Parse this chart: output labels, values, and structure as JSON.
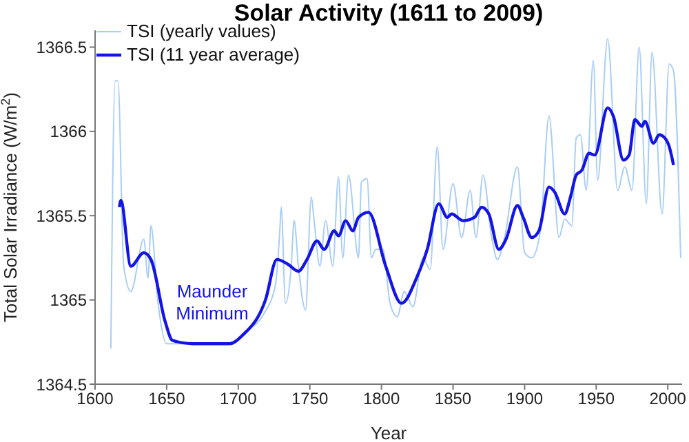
{
  "chart_data": {
    "type": "line",
    "title": "Solar Activity (1611 to 2009)",
    "xlabel": "Year",
    "ylabel": "Total Solar Irradiance (W/m$^{2}$)",
    "xlim": [
      1600,
      2010
    ],
    "xticks": [
      1600,
      1650,
      1700,
      1750,
      1800,
      1850,
      1900,
      1950,
      2000
    ],
    "ylim": [
      1364.5,
      1366.6
    ],
    "yticks": [
      1364.5,
      1365,
      1365.5,
      1366,
      1366.5
    ],
    "grid": false,
    "legend": "top left",
    "marker": "none",
    "line_style": "solid",
    "annotations": [
      "Maunder Minimum"
    ],
    "series": [
      {
        "name": "TSI (yearly values)",
        "color": "#a8cdf7",
        "x": [
          1611,
          1614,
          1616,
          1620,
          1625,
          1634,
          1637,
          1639,
          1644,
          1650,
          1660,
          1680,
          1695,
          1703,
          1718,
          1726,
          1729,
          1730,
          1733,
          1737,
          1739,
          1742,
          1747,
          1751,
          1753,
          1757,
          1761,
          1766,
          1770,
          1773,
          1777,
          1784,
          1786,
          1790,
          1793,
          1796,
          1801,
          1806,
          1811,
          1816,
          1822,
          1829,
          1834,
          1839,
          1843,
          1850,
          1856,
          1862,
          1866,
          1871,
          1877,
          1881,
          1886,
          1895,
          1900,
          1905,
          1911,
          1917,
          1924,
          1928,
          1933,
          1936,
          1939,
          1943,
          1948,
          1951,
          1958,
          1965,
          1970,
          1975,
          1980,
          1985,
          1989,
          1996,
          2001,
          2004,
          2009
        ],
        "values": [
          1364.71,
          1366.3,
          1366.3,
          1365.2,
          1365.05,
          1365.36,
          1365.13,
          1365.44,
          1364.98,
          1364.74,
          1364.74,
          1364.74,
          1364.74,
          1364.8,
          1364.92,
          1365.09,
          1365.41,
          1365.55,
          1364.98,
          1365.2,
          1365.47,
          1365.2,
          1364.94,
          1365.61,
          1365.47,
          1365.2,
          1365.47,
          1365.2,
          1365.73,
          1365.25,
          1365.74,
          1365.25,
          1365.7,
          1365.72,
          1365.25,
          1365.3,
          1365.3,
          1364.98,
          1364.9,
          1365.05,
          1364.96,
          1365.25,
          1365.18,
          1365.91,
          1365.3,
          1365.69,
          1365.37,
          1365.65,
          1365.37,
          1365.74,
          1365.37,
          1365.24,
          1365.37,
          1365.79,
          1365.28,
          1365.25,
          1365.41,
          1366.09,
          1365.37,
          1365.48,
          1365.44,
          1365.96,
          1365.98,
          1365.65,
          1366.42,
          1365.71,
          1366.55,
          1365.65,
          1365.79,
          1365.65,
          1366.5,
          1365.57,
          1366.47,
          1365.51,
          1366.4,
          1366.36,
          1365.25
        ]
      },
      {
        "name": "TSI (11 year average)",
        "color": "#1414e6",
        "x": [
          1617,
          1618,
          1625,
          1634,
          1639,
          1649,
          1654,
          1668,
          1694,
          1703,
          1719,
          1727,
          1735,
          1742,
          1748,
          1755,
          1760,
          1767,
          1770,
          1775,
          1780,
          1784,
          1791,
          1803,
          1814,
          1825,
          1832,
          1840,
          1846,
          1849,
          1857,
          1865,
          1870,
          1875,
          1882,
          1887,
          1895,
          1899,
          1905,
          1910,
          1917,
          1921,
          1928,
          1932,
          1936,
          1940,
          1945,
          1949,
          1958,
          1962,
          1969,
          1973,
          1977,
          1982,
          1984,
          1990,
          1994,
          1998,
          2001,
          2004
        ],
        "values": [
          1365.55,
          1365.59,
          1365.2,
          1365.28,
          1365.24,
          1364.87,
          1364.76,
          1364.74,
          1364.74,
          1364.79,
          1365.0,
          1365.24,
          1365.21,
          1365.17,
          1365.24,
          1365.35,
          1365.3,
          1365.41,
          1365.38,
          1365.47,
          1365.41,
          1365.49,
          1365.52,
          1365.2,
          1364.98,
          1365.14,
          1365.3,
          1365.57,
          1365.49,
          1365.51,
          1365.47,
          1365.49,
          1365.55,
          1365.51,
          1365.3,
          1365.36,
          1365.56,
          1365.49,
          1365.37,
          1365.41,
          1365.67,
          1365.64,
          1365.51,
          1365.61,
          1365.74,
          1365.77,
          1365.87,
          1365.86,
          1366.14,
          1366.09,
          1365.83,
          1365.86,
          1366.07,
          1366.03,
          1366.06,
          1365.93,
          1365.98,
          1365.96,
          1365.91,
          1365.8
        ]
      }
    ]
  }
}
